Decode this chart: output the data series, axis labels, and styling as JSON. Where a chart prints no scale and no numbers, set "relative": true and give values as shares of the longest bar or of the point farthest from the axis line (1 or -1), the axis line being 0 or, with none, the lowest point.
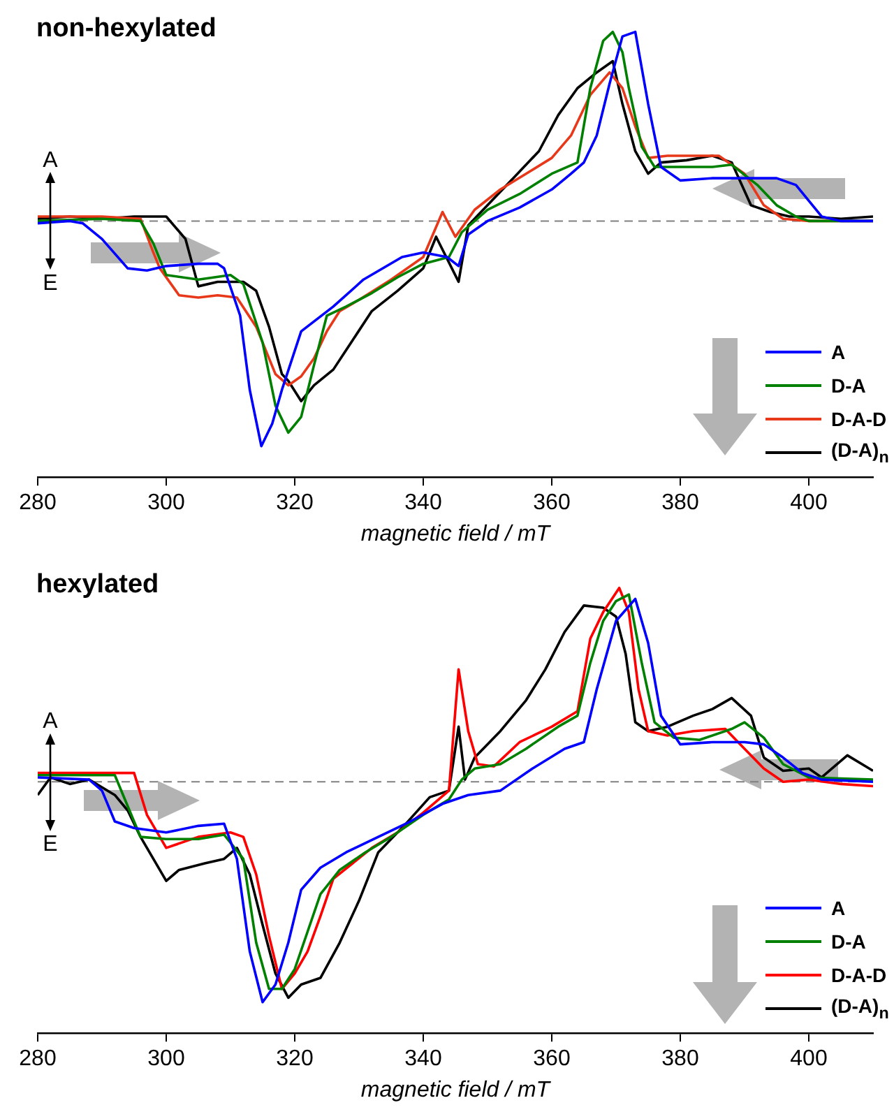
{
  "chart_data": [
    {
      "type": "line",
      "title": "non-hexylated",
      "xlabel": "magnetic field / mT",
      "relative": true,
      "xlim": [
        280,
        410
      ],
      "xticks": [
        280,
        300,
        320,
        340,
        360,
        380,
        400
      ],
      "legend": "bottom right",
      "grid": false,
      "annotations": [
        "A",
        "E"
      ],
      "ref_lines": [
        {
          "axis": "y",
          "value": 0,
          "color": "#808080",
          "line_style": "dashed"
        }
      ],
      "series": [
        {
          "name": "A",
          "color": "#0000ff",
          "x": [
            280,
            285,
            287,
            290,
            294,
            297,
            300,
            305,
            308,
            309,
            311.5,
            313,
            314.8,
            316.5,
            318,
            321,
            326,
            330.7,
            336.7,
            340,
            343.7,
            345.5,
            347,
            350,
            355,
            360,
            363,
            365,
            367,
            369,
            371,
            373,
            375,
            377,
            380,
            385,
            390,
            395,
            398,
            400,
            402,
            405,
            410
          ],
          "values": [
            -0.01,
            0,
            -0.01,
            -0.08,
            -0.21,
            -0.22,
            -0.2,
            -0.19,
            -0.19,
            -0.21,
            -0.42,
            -0.75,
            -1,
            -0.9,
            -0.75,
            -0.49,
            -0.38,
            -0.26,
            -0.16,
            -0.14,
            -0.16,
            -0.2,
            -0.06,
            0,
            0.06,
            0.14,
            0.21,
            0.26,
            0.38,
            0.61,
            0.82,
            0.84,
            0.52,
            0.24,
            0.18,
            0.19,
            0.19,
            0.19,
            0.16,
            0.09,
            0.02,
            0,
            0
          ]
        },
        {
          "name": "D-A",
          "color": "#008000",
          "x": [
            280,
            290,
            296,
            298,
            300,
            305,
            310,
            312,
            315,
            317,
            319,
            321,
            323,
            325,
            328,
            332,
            336,
            340,
            344,
            346,
            350,
            355,
            360,
            364,
            366,
            368,
            369.5,
            371,
            372,
            374,
            376,
            380,
            385,
            388,
            392,
            395,
            398,
            400,
            410
          ],
          "values": [
            0,
            0.01,
            0,
            -0.1,
            -0.24,
            -0.26,
            -0.24,
            -0.28,
            -0.54,
            -0.82,
            -0.94,
            -0.87,
            -0.64,
            -0.42,
            -0.38,
            -0.32,
            -0.25,
            -0.19,
            -0.16,
            -0.05,
            0.05,
            0.12,
            0.21,
            0.26,
            0.59,
            0.8,
            0.84,
            0.75,
            0.59,
            0.33,
            0.24,
            0.24,
            0.24,
            0.25,
            0.16,
            0.07,
            0.02,
            0,
            0
          ]
        },
        {
          "name": "D-A-D",
          "color": "#e8381a",
          "x": [
            280,
            290,
            296,
            298,
            299,
            302,
            305,
            308,
            311,
            314,
            317,
            319,
            321,
            323,
            325,
            327,
            330,
            335,
            340,
            343,
            345,
            348,
            352,
            356,
            360,
            363,
            366,
            369,
            371,
            373,
            375,
            378,
            382,
            386,
            390,
            393,
            396,
            400,
            410
          ],
          "values": [
            0.02,
            0.02,
            0.01,
            -0.14,
            -0.21,
            -0.33,
            -0.34,
            -0.33,
            -0.34,
            -0.47,
            -0.68,
            -0.73,
            -0.69,
            -0.61,
            -0.49,
            -0.4,
            -0.35,
            -0.26,
            -0.16,
            0.04,
            -0.07,
            0.05,
            0.14,
            0.21,
            0.28,
            0.38,
            0.56,
            0.66,
            0.59,
            0.42,
            0.28,
            0.29,
            0.29,
            0.29,
            0.21,
            0.07,
            0.01,
            0,
            0
          ]
        },
        {
          "name": "(D-A)$_{n}$",
          "color": "#000000",
          "x": [
            280,
            285,
            290,
            295,
            300,
            303,
            305,
            308,
            312,
            314,
            316,
            318,
            319,
            321,
            323,
            326,
            329,
            332,
            336,
            340,
            342,
            345.5,
            347,
            350,
            354,
            358,
            361,
            364,
            367,
            369.5,
            371,
            373,
            375,
            377,
            381,
            385,
            388,
            391,
            394,
            397,
            400,
            405,
            410
          ],
          "values": [
            0.01,
            0.02,
            0.01,
            0.02,
            0.02,
            -0.08,
            -0.29,
            -0.27,
            -0.27,
            -0.31,
            -0.47,
            -0.68,
            -0.71,
            -0.8,
            -0.73,
            -0.66,
            -0.53,
            -0.4,
            -0.31,
            -0.21,
            -0.07,
            -0.27,
            -0.02,
            0.07,
            0.19,
            0.31,
            0.47,
            0.59,
            0.66,
            0.71,
            0.52,
            0.31,
            0.21,
            0.26,
            0.27,
            0.29,
            0.26,
            0.07,
            0.04,
            0.02,
            0.02,
            0.01,
            0.02
          ]
        }
      ]
    },
    {
      "type": "line",
      "title": "hexylated",
      "xlabel": "magnetic field / mT",
      "relative": true,
      "xlim": [
        280,
        410
      ],
      "xticks": [
        280,
        300,
        320,
        340,
        360,
        380,
        400
      ],
      "legend": "bottom right",
      "grid": false,
      "annotations": [
        "A",
        "E"
      ],
      "ref_lines": [
        {
          "axis": "y",
          "value": 0,
          "color": "#808080",
          "line_style": "dashed"
        }
      ],
      "series": [
        {
          "name": "A",
          "color": "#0000ff",
          "x": [
            280,
            288,
            290,
            292,
            295,
            300,
            305,
            309,
            311,
            313,
            315,
            317,
            319,
            321,
            324,
            328,
            333,
            338,
            343,
            347,
            352,
            357,
            362,
            365,
            367,
            370,
            373,
            375,
            377,
            380,
            385,
            390,
            393,
            396,
            399,
            402,
            410
          ],
          "values": [
            0.02,
            0.01,
            -0.04,
            -0.18,
            -0.21,
            -0.23,
            -0.2,
            -0.19,
            -0.35,
            -0.77,
            -1,
            -0.92,
            -0.73,
            -0.49,
            -0.39,
            -0.32,
            -0.25,
            -0.18,
            -0.1,
            -0.06,
            -0.04,
            0.06,
            0.15,
            0.18,
            0.42,
            0.73,
            0.83,
            0.63,
            0.3,
            0.17,
            0.18,
            0.18,
            0.17,
            0.11,
            0.04,
            0.01,
            0
          ]
        },
        {
          "name": "D-A",
          "color": "#008000",
          "x": [
            280,
            292,
            294,
            296,
            300,
            305,
            309,
            312,
            314,
            316,
            318,
            320,
            322,
            324,
            327,
            331,
            335,
            340,
            344,
            346,
            348,
            352,
            356,
            361,
            364,
            366,
            368,
            370,
            372,
            374,
            376,
            379,
            383,
            388,
            390,
            393,
            396,
            400,
            410
          ],
          "values": [
            0.03,
            0.03,
            -0.11,
            -0.25,
            -0.26,
            -0.26,
            -0.24,
            -0.35,
            -0.73,
            -0.94,
            -0.94,
            -0.85,
            -0.68,
            -0.51,
            -0.4,
            -0.32,
            -0.25,
            -0.15,
            -0.08,
            0.01,
            0.06,
            0.08,
            0.15,
            0.25,
            0.3,
            0.54,
            0.73,
            0.82,
            0.85,
            0.54,
            0.27,
            0.2,
            0.19,
            0.24,
            0.27,
            0.2,
            0.08,
            0.02,
            0.01
          ]
        },
        {
          "name": "D-A-D",
          "color": "#ff0000",
          "x": [
            280,
            295,
            297,
            300,
            305,
            310,
            312,
            314,
            316,
            318,
            320,
            322,
            324,
            326,
            329,
            332,
            336,
            340,
            344,
            345.5,
            347,
            348.5,
            351,
            355,
            360,
            364,
            366,
            368,
            370.5,
            372,
            373.5,
            375,
            378,
            382,
            387,
            390,
            393,
            396,
            400,
            405,
            410
          ],
          "values": [
            0.04,
            0.04,
            -0.15,
            -0.3,
            -0.25,
            -0.23,
            -0.25,
            -0.42,
            -0.7,
            -0.94,
            -0.87,
            -0.77,
            -0.61,
            -0.44,
            -0.37,
            -0.3,
            -0.23,
            -0.14,
            -0.04,
            0.51,
            0.23,
            0.08,
            0.07,
            0.18,
            0.25,
            0.32,
            0.65,
            0.77,
            0.88,
            0.77,
            0.42,
            0.23,
            0.21,
            0.23,
            0.24,
            0.15,
            0.06,
            0,
            0.01,
            -0.01,
            -0.02
          ]
        },
        {
          "name": "(D-A)$_{n}$",
          "color": "#000000",
          "x": [
            280,
            282,
            285,
            288,
            292,
            294,
            296,
            298,
            300,
            302,
            306,
            309,
            311,
            313,
            315,
            317,
            319,
            321,
            324,
            327,
            330,
            333,
            337,
            341,
            344,
            345.5,
            346.5,
            348,
            352,
            356,
            359,
            362,
            365,
            368,
            370,
            371.5,
            373,
            375,
            378,
            382,
            385,
            388,
            391,
            393,
            396,
            400,
            402,
            406,
            410
          ],
          "values": [
            -0.06,
            0.02,
            -0.01,
            0.01,
            -0.06,
            -0.13,
            -0.25,
            -0.35,
            -0.45,
            -0.4,
            -0.37,
            -0.35,
            -0.3,
            -0.42,
            -0.65,
            -0.87,
            -0.98,
            -0.92,
            -0.89,
            -0.73,
            -0.54,
            -0.32,
            -0.2,
            -0.07,
            -0.04,
            0.25,
            0.01,
            0.11,
            0.23,
            0.37,
            0.51,
            0.68,
            0.8,
            0.79,
            0.75,
            0.58,
            0.27,
            0.23,
            0.25,
            0.3,
            0.33,
            0.38,
            0.3,
            0.11,
            0.05,
            0.06,
            0.02,
            0.12,
            0.05
          ]
        }
      ]
    }
  ]
}
